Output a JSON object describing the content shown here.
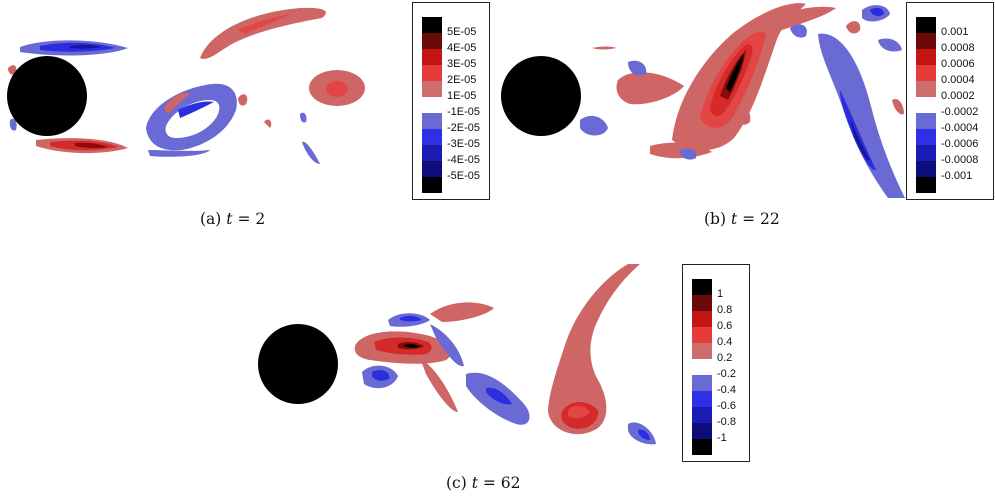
{
  "colors": {
    "red_dark": "#8b0a0a",
    "red": "#d42a2a",
    "red_mid": "#e34545",
    "red_light": "#cf6666",
    "blue_light": "#6a6ad4",
    "blue": "#2d2de0",
    "blue_dark": "#17179a",
    "black": "#000000"
  },
  "panels": [
    {
      "id": "a",
      "caption_prefix": "(a)",
      "caption_var": "t",
      "caption_rest": "= 2",
      "legend_labels": [
        "5E-05",
        "4E-05",
        "3E-05",
        "2E-05",
        "1E-05",
        "-1E-05",
        "-2E-05",
        "-3E-05",
        "-4E-05",
        "-5E-05"
      ]
    },
    {
      "id": "b",
      "caption_prefix": "(b)",
      "caption_var": "t",
      "caption_rest": "= 22",
      "legend_labels": [
        "0.001",
        "0.0008",
        "0.0006",
        "0.0004",
        "0.0002",
        "-0.0002",
        "-0.0004",
        "-0.0006",
        "-0.0008",
        "-0.001"
      ]
    },
    {
      "id": "c",
      "caption_prefix": "(c)",
      "caption_var": "t",
      "caption_rest": "= 62",
      "legend_labels": [
        "1",
        "0.8",
        "0.6",
        "0.4",
        "0.2",
        "-0.2",
        "-0.4",
        "-0.6",
        "-0.8",
        "-1"
      ]
    }
  ],
  "legend_swatch_colors": [
    "#000000",
    "#6b0808",
    "#c41414",
    "#e63b3b",
    "#cf6c6c",
    "#ffffff",
    "#6a6ad4",
    "#2f2fe6",
    "#1a1ab4",
    "#0c0c7a",
    "#000000"
  ]
}
